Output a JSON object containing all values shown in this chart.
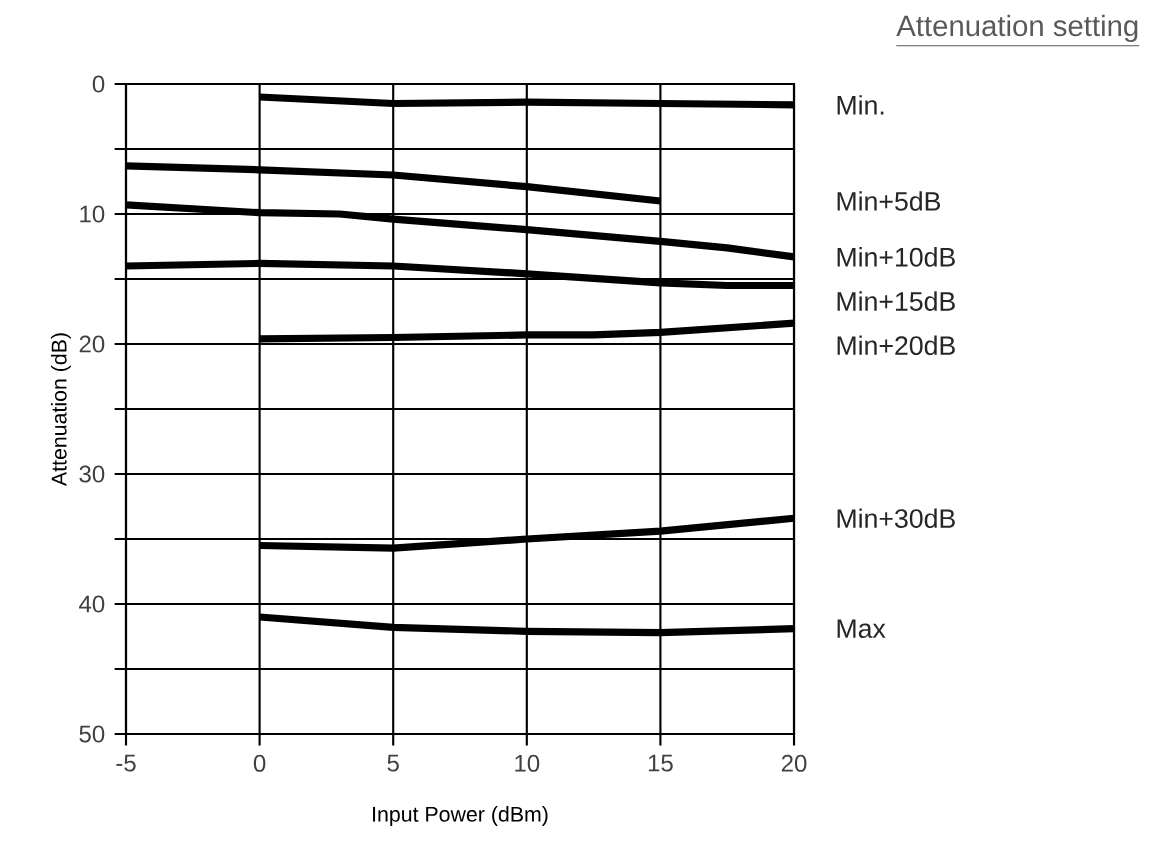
{
  "chart_data": {
    "type": "line",
    "xlabel": "Input Power (dBm)",
    "ylabel": "Attenuation (dB)",
    "legend_title": "Attenuation setting",
    "xlim": [
      -5,
      20
    ],
    "xticks": [
      {
        "value": -5,
        "label": "-5"
      },
      0,
      5,
      10,
      15,
      20
    ],
    "ylim": [
      50,
      0
    ],
    "yticks": [
      0,
      {
        "value": 5,
        "label": null
      },
      10,
      {
        "value": 15,
        "label": null
      },
      20,
      {
        "value": 25,
        "label": null
      },
      30,
      {
        "value": 35,
        "label": null
      },
      40,
      {
        "value": 45,
        "label": null
      },
      50
    ],
    "grid": true,
    "legend": false,
    "marker": "none",
    "line_style": "solid",
    "series": [
      {
        "name": "Min.",
        "color": "#000000",
        "x": [
          0,
          5,
          10,
          15,
          20
        ],
        "values": [
          1.0,
          1.5,
          1.4,
          1.5,
          1.6
        ]
      },
      {
        "name": "Min+5dB",
        "color": "#000000",
        "x": [
          -5,
          0,
          5,
          10,
          15
        ],
        "values": [
          6.3,
          6.6,
          7.0,
          7.9,
          9.0
        ]
      },
      {
        "name": "Min+10dB",
        "color": "#000000",
        "x": [
          -5,
          0,
          3,
          5,
          10,
          15,
          17.5,
          20
        ],
        "values": [
          9.3,
          9.9,
          10.0,
          10.4,
          11.2,
          12.1,
          12.6,
          13.3
        ]
      },
      {
        "name": "Min+15dB",
        "color": "#000000",
        "x": [
          -5,
          0,
          5,
          10,
          15,
          17.5,
          20
        ],
        "values": [
          14.0,
          13.8,
          14.0,
          14.6,
          15.3,
          15.5,
          15.5
        ]
      },
      {
        "name": "Min+20dB",
        "color": "#000000",
        "x": [
          0,
          5,
          10,
          12.5,
          15,
          20
        ],
        "values": [
          19.6,
          19.5,
          19.3,
          19.3,
          19.1,
          18.4
        ]
      },
      {
        "name": "Min+30dB",
        "color": "#000000",
        "x": [
          0,
          5,
          10,
          15,
          20
        ],
        "values": [
          35.5,
          35.7,
          35.0,
          34.4,
          33.4
        ]
      },
      {
        "name": "Max",
        "color": "#000000",
        "x": [
          0,
          5,
          10,
          15,
          20
        ],
        "values": [
          41.0,
          41.8,
          42.1,
          42.2,
          41.9
        ]
      }
    ]
  }
}
